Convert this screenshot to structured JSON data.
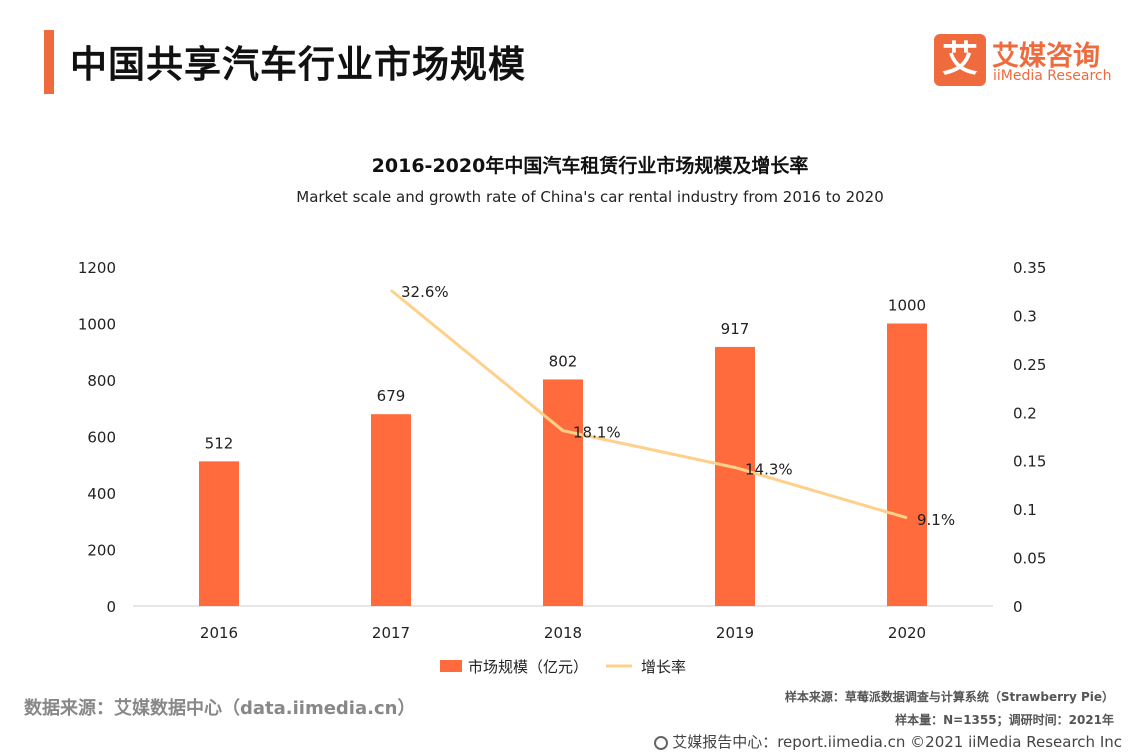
{
  "header": {
    "title": "中国共享汽车行业市场规模",
    "logo_mark": "艾",
    "logo_cn": "艾媒咨询",
    "logo_en": "iiMedia Research"
  },
  "colors": {
    "bar": "#ff6b3d",
    "line": "#ffd08a",
    "accent": "#ef6a3c"
  },
  "chart_data": {
    "type": "bar",
    "title": "2016-2020年中国汽车租赁行业市场规模及增长率",
    "subtitle": "Market scale and growth rate of China's car rental industry from 2016 to 2020",
    "categories": [
      "2016",
      "2017",
      "2018",
      "2019",
      "2020"
    ],
    "series": [
      {
        "name": "市场规模（亿元）",
        "type": "bar",
        "axis": "left",
        "values": [
          512,
          679,
          802,
          917,
          1000
        ],
        "labels": [
          "512",
          "679",
          "802",
          "917",
          "1000"
        ]
      },
      {
        "name": "增长率",
        "type": "line",
        "axis": "right",
        "values": [
          null,
          0.326,
          0.181,
          0.143,
          0.091
        ],
        "labels": [
          "",
          "32.6%",
          "18.1%",
          "14.3%",
          "9.1%"
        ]
      }
    ],
    "y_left": {
      "min": 0,
      "max": 1200,
      "ticks": [
        "0",
        "200",
        "400",
        "600",
        "800",
        "1000",
        "1200"
      ]
    },
    "y_right": {
      "min": 0,
      "max": 0.35,
      "ticks": [
        "0",
        "0.05",
        "0.1",
        "0.15",
        "0.2",
        "0.25",
        "0.3",
        "0.35"
      ]
    },
    "legend": "bottom-center",
    "grid": false
  },
  "footer": {
    "source": "数据来源：艾媒数据中心（data.iimedia.cn）",
    "sample_source": "样本来源：草莓派数据调查与计算系统（Strawberry Pie）",
    "sample_size": "样本量：N=1355；调研时间：2021年",
    "report": "艾媒报告中心：report.iimedia.cn  ©2021  iiMedia Research  Inc"
  }
}
